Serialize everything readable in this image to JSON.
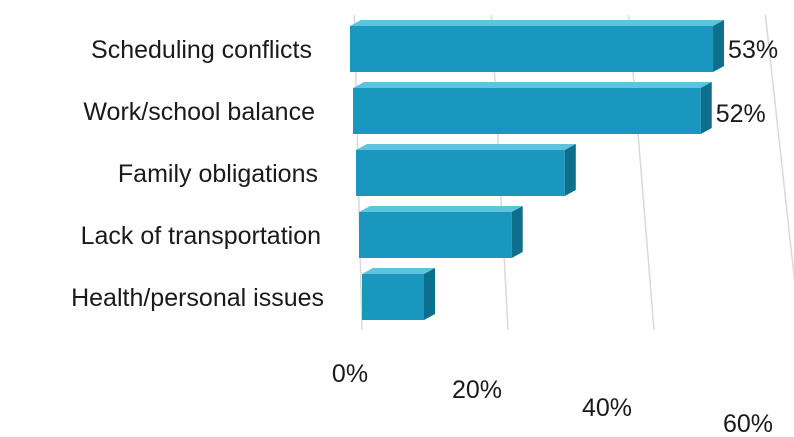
{
  "chart_data": {
    "type": "bar",
    "orientation": "horizontal",
    "style": "3d",
    "categories": [
      "Scheduling conflicts",
      "Work/school balance",
      "Family obligations",
      "Lack of transportation",
      "Health/personal issues"
    ],
    "values": [
      53,
      52,
      32,
      24,
      10
    ],
    "value_labels": [
      "53%",
      "52%",
      null,
      null,
      null
    ],
    "x_ticks": [
      "0%",
      "20%",
      "40%",
      "60%"
    ],
    "xlim": [
      0,
      60
    ],
    "grid": true,
    "colors": {
      "bar_front": "#1a97bd",
      "bar_top": "#5dc3df",
      "bar_side": "#0e6f8c",
      "gridline": "#d9d9d9"
    }
  }
}
